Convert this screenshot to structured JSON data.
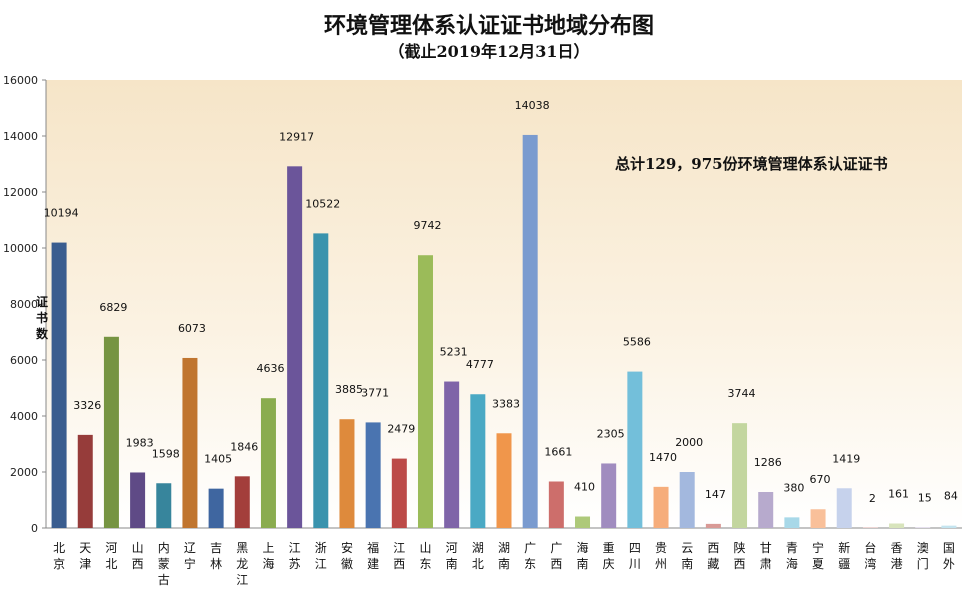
{
  "chart_data": {
    "type": "bar",
    "title": "环境管理体系认证证书地域分布图",
    "subtitle": "（截止2019年12月31日）",
    "ylabel": "证书数",
    "annotation": "总计129，975份环境管理体系认证证书",
    "ylim": [
      0,
      16000
    ],
    "yticks": [
      "0",
      "2000",
      "4000",
      "6000",
      "8000",
      "10000",
      "12000",
      "14000",
      "16000"
    ],
    "grid": false,
    "legend": "none",
    "categories": [
      "北京",
      "天津",
      "河北",
      "山西",
      "内蒙古",
      "辽宁",
      "吉林",
      "黑龙江",
      "上海",
      "江苏",
      "浙江",
      "安徽",
      "福建",
      "江西",
      "山东",
      "河南",
      "湖北",
      "湖南",
      "广东",
      "广西",
      "海南",
      "重庆",
      "四川",
      "贵州",
      "云南",
      "西藏",
      "陕西",
      "甘肃",
      "青海",
      "宁夏",
      "新疆",
      "台湾",
      "香港",
      "澳门",
      "国外"
    ],
    "values": [
      10194,
      3326,
      6829,
      1983,
      1598,
      6073,
      1405,
      1846,
      4636,
      12917,
      10522,
      3885,
      3771,
      2479,
      9742,
      5231,
      4777,
      3383,
      14038,
      1661,
      410,
      2305,
      5586,
      1470,
      2000,
      147,
      3744,
      1286,
      380,
      670,
      1419,
      2,
      161,
      15,
      84
    ],
    "value_labels": [
      "10194",
      "3326",
      "6829",
      "1983",
      "1598",
      "6073",
      "1405",
      "1846",
      "4636",
      "12917",
      "10522",
      "3885",
      "3771",
      "2479",
      "9742",
      "5231",
      "4777",
      "3383",
      "14038",
      "1661",
      "410",
      "2305",
      "5586",
      "1470",
      "2000",
      "147",
      "3744",
      "1286",
      "380",
      "670",
      "1419",
      "2",
      "161",
      "15",
      "84"
    ],
    "colors": [
      "#3a5d8f",
      "#963c3a",
      "#769442",
      "#5f4a86",
      "#37859c",
      "#c0752f",
      "#3f66a0",
      "#a33e3b",
      "#8aac4f",
      "#6b559a",
      "#3a93ad",
      "#de8a3c",
      "#4a74b0",
      "#bc4a47",
      "#9bbb59",
      "#7f64a8",
      "#4aa9c4",
      "#f0964b",
      "#7a9bcf",
      "#cd6e6b",
      "#aec97a",
      "#a08cbf",
      "#73bfda",
      "#f6ad7b",
      "#a3b8de",
      "#d99a96",
      "#c3d69f",
      "#b7aacd",
      "#a8d8e8",
      "#f9c09a",
      "#c6d2ec",
      "#e3bab7",
      "#d8e4bc",
      "#d5cce3",
      "#c4e4ef"
    ]
  }
}
